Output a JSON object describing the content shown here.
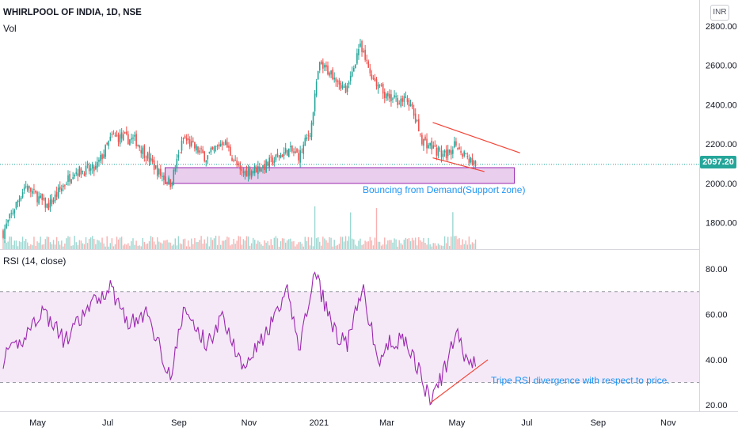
{
  "header": {
    "symbol": "WHIRLPOOL OF INDIA, 1D, NSE",
    "volume_label": "Vol",
    "currency": "INR",
    "last_price": "2097.20"
  },
  "rsi_panel": {
    "label": "RSI (14, close)"
  },
  "annotations": {
    "demand_zone": "Bouncing from Demand(Support zone)",
    "divergence": "Tripe RSI divergence with respect to price."
  },
  "colors": {
    "up": "#26a69a",
    "down": "#ef5350",
    "zone_fill": "#e1bee7",
    "zone_border": "#9c27b0",
    "rsi_line": "#9c27b0",
    "trendline": "#f44336",
    "annotation": "#2196f3"
  },
  "chart_data": [
    {
      "type": "candlestick",
      "title": "WHIRLPOOL OF INDIA, 1D, NSE",
      "y_ticks": [
        "1800.00",
        "2000.00",
        "2200.00",
        "2400.00",
        "2600.00",
        "2800.00"
      ],
      "x_ticks": [
        "May",
        "Jul",
        "Sep",
        "Nov",
        "2021",
        "Mar",
        "May",
        "Jul",
        "Sep",
        "Nov"
      ],
      "ylim": [
        1640,
        2850
      ],
      "last_price": 2097.2,
      "key_closes": [
        {
          "t": "2020-04-01",
          "v": 1750
        },
        {
          "t": "2020-04-20",
          "v": 1990
        },
        {
          "t": "2020-05-10",
          "v": 1880
        },
        {
          "t": "2020-06-01",
          "v": 2060
        },
        {
          "t": "2020-06-20",
          "v": 2070
        },
        {
          "t": "2020-07-05",
          "v": 2240
        },
        {
          "t": "2020-07-25",
          "v": 2220
        },
        {
          "t": "2020-08-15",
          "v": 2050
        },
        {
          "t": "2020-08-25",
          "v": 2000
        },
        {
          "t": "2020-09-05",
          "v": 2230
        },
        {
          "t": "2020-09-25",
          "v": 2130
        },
        {
          "t": "2020-10-10",
          "v": 2220
        },
        {
          "t": "2020-10-25",
          "v": 2050
        },
        {
          "t": "2020-11-15",
          "v": 2090
        },
        {
          "t": "2020-12-05",
          "v": 2170
        },
        {
          "t": "2020-12-15",
          "v": 2140
        },
        {
          "t": "2020-12-25",
          "v": 2280
        },
        {
          "t": "2021-01-01",
          "v": 2600
        },
        {
          "t": "2021-01-15",
          "v": 2550
        },
        {
          "t": "2021-01-25",
          "v": 2460
        },
        {
          "t": "2021-02-05",
          "v": 2700
        },
        {
          "t": "2021-02-15",
          "v": 2560
        },
        {
          "t": "2021-03-01",
          "v": 2430
        },
        {
          "t": "2021-03-20",
          "v": 2420
        },
        {
          "t": "2021-04-01",
          "v": 2220
        },
        {
          "t": "2021-04-20",
          "v": 2140
        },
        {
          "t": "2021-05-01",
          "v": 2200
        },
        {
          "t": "2021-05-10",
          "v": 2130
        },
        {
          "t": "2021-05-18",
          "v": 2097.2
        }
      ],
      "demand_zone": {
        "from": "2020-08-20",
        "to": "2021-06-20",
        "low": 2000,
        "high": 2080
      },
      "channel_upper": [
        {
          "t": "2021-04-10",
          "v": 2310
        },
        {
          "t": "2021-06-25",
          "v": 2155
        }
      ],
      "channel_lower": [
        {
          "t": "2021-04-10",
          "v": 2130
        },
        {
          "t": "2021-05-25",
          "v": 2060
        }
      ],
      "volume_spikes": [
        "2020-12-28",
        "2021-01-28",
        "2021-02-20",
        "2021-04-28"
      ]
    },
    {
      "type": "line",
      "title": "RSI (14, close)",
      "y_ticks": [
        "20.00",
        "40.00",
        "60.00",
        "80.00"
      ],
      "ylim": [
        18,
        84
      ],
      "bands": [
        30,
        70
      ],
      "key_values": [
        {
          "t": "2020-04-01",
          "v": 40
        },
        {
          "t": "2020-04-15",
          "v": 47
        },
        {
          "t": "2020-05-05",
          "v": 62
        },
        {
          "t": "2020-05-25",
          "v": 48
        },
        {
          "t": "2020-06-15",
          "v": 63
        },
        {
          "t": "2020-07-03",
          "v": 72
        },
        {
          "t": "2020-07-20",
          "v": 56
        },
        {
          "t": "2020-08-05",
          "v": 60
        },
        {
          "t": "2020-08-25",
          "v": 32
        },
        {
          "t": "2020-09-05",
          "v": 62
        },
        {
          "t": "2020-09-25",
          "v": 47
        },
        {
          "t": "2020-10-10",
          "v": 59
        },
        {
          "t": "2020-10-25",
          "v": 38
        },
        {
          "t": "2020-11-15",
          "v": 50
        },
        {
          "t": "2020-12-05",
          "v": 70
        },
        {
          "t": "2020-12-15",
          "v": 45
        },
        {
          "t": "2020-12-28",
          "v": 78
        },
        {
          "t": "2021-01-15",
          "v": 52
        },
        {
          "t": "2021-01-25",
          "v": 46
        },
        {
          "t": "2021-02-08",
          "v": 71
        },
        {
          "t": "2021-02-22",
          "v": 38
        },
        {
          "t": "2021-03-05",
          "v": 49
        },
        {
          "t": "2021-03-20",
          "v": 47
        },
        {
          "t": "2021-04-08",
          "v": 21
        },
        {
          "t": "2021-04-20",
          "v": 35
        },
        {
          "t": "2021-04-30",
          "v": 52
        },
        {
          "t": "2021-05-10",
          "v": 40
        },
        {
          "t": "2021-05-18",
          "v": 37
        }
      ],
      "divergence_line": [
        {
          "t": "2021-04-08",
          "v": 21
        },
        {
          "t": "2021-05-28",
          "v": 40
        }
      ]
    }
  ]
}
